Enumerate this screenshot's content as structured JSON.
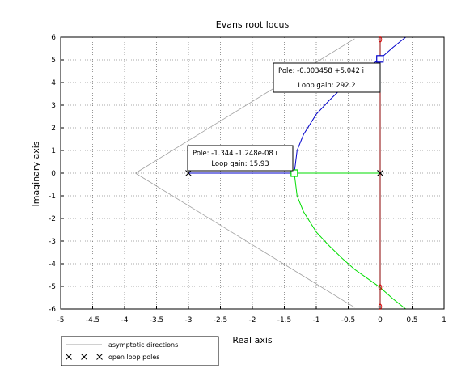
{
  "chart_data": {
    "type": "line",
    "title": "Evans root locus",
    "xlabel": "Real axis",
    "ylabel": "Imaginary axis",
    "xlim": [
      -5,
      1
    ],
    "ylim": [
      -6,
      6
    ],
    "x_ticks": [
      -5,
      -4.5,
      -4,
      -3.5,
      -3,
      -2.5,
      -2,
      -1.5,
      -1,
      -0.5,
      0,
      0.5,
      1
    ],
    "x_tick_labels": [
      "-5",
      "-4.5",
      "-4",
      "-3.5",
      "-3",
      "-2.5",
      "-2",
      "-1.5",
      "-1",
      "-0.5",
      "0",
      "0.5",
      "1"
    ],
    "y_ticks": [
      -6,
      -5,
      -4,
      -3,
      -2,
      -1,
      0,
      1,
      2,
      3,
      4,
      5,
      6
    ],
    "y_tick_labels": [
      "-6",
      "-5",
      "-4",
      "-3",
      "-2",
      "-1",
      "0",
      "1",
      "2",
      "3",
      "4",
      "5",
      "6"
    ],
    "grid": true,
    "legend_position": "below-left",
    "legend": [
      {
        "label": "asymptotic directions",
        "marker": "line",
        "color": "#a0a0a0"
      },
      {
        "label": "open loop poles",
        "marker": "x",
        "color": "#000000"
      }
    ],
    "series": [
      {
        "color": "#0000cc",
        "x": [
          -3,
          -1.5,
          -1.39,
          -1.35,
          -1.344,
          -1.3,
          -1.2,
          -1.0,
          -0.8,
          -0.6,
          -0.4,
          -0.2,
          -0.003458,
          0.2,
          0.4
        ],
        "y": [
          0,
          0,
          0,
          0,
          0,
          1.0,
          1.7,
          2.6,
          3.2,
          3.75,
          4.25,
          4.65,
          5.042,
          5.55,
          6.0
        ]
      },
      {
        "color": "#00dd00",
        "x": [
          0,
          -1.344
        ],
        "y": [
          0,
          0
        ]
      },
      {
        "color": "#00dd00",
        "x": [
          -1.344,
          -1.3,
          -1.2,
          -1.0,
          -0.8,
          -0.6,
          -0.4,
          -0.2,
          -0.003458,
          0.2,
          0.4
        ],
        "y": [
          0,
          -1.0,
          -1.7,
          -2.6,
          -3.2,
          -3.75,
          -4.25,
          -4.65,
          -5.042,
          -5.55,
          -6.0
        ]
      },
      {
        "color": "#8b0000",
        "x": [
          0,
          0
        ],
        "y": [
          -6,
          6
        ]
      }
    ],
    "asymptotes": {
      "color": "#a0a0a0",
      "origin": [
        -3.83,
        0
      ],
      "points": [
        [
          -0.4,
          5.93
        ],
        [
          -0.4,
          -5.93
        ]
      ]
    },
    "open_loop_poles": [
      [
        -3,
        0
      ],
      [
        0,
        0
      ],
      [
        0,
        0
      ]
    ],
    "markers": {
      "red_circles": [
        [
          0,
          5.9
        ],
        [
          0,
          -5.9
        ],
        [
          0,
          5.042
        ],
        [
          0,
          -5.042
        ]
      ],
      "datatip_squares": [
        {
          "x": -0.003458,
          "y": 5.042,
          "color": "#0000cc"
        },
        {
          "x": -1.344,
          "y": 0,
          "color": "#00dd00"
        }
      ]
    },
    "annotations": [
      {
        "line1": "Pole: -0.003458 +5.042 i",
        "line2": "Loop gain: 292.2",
        "at": [
          -0.003458,
          5.042
        ]
      },
      {
        "line1": "Pole: -1.344 -1.248e-08 i",
        "line2": "Loop gain: 15.93",
        "at": [
          -1.344,
          0
        ]
      }
    ]
  }
}
